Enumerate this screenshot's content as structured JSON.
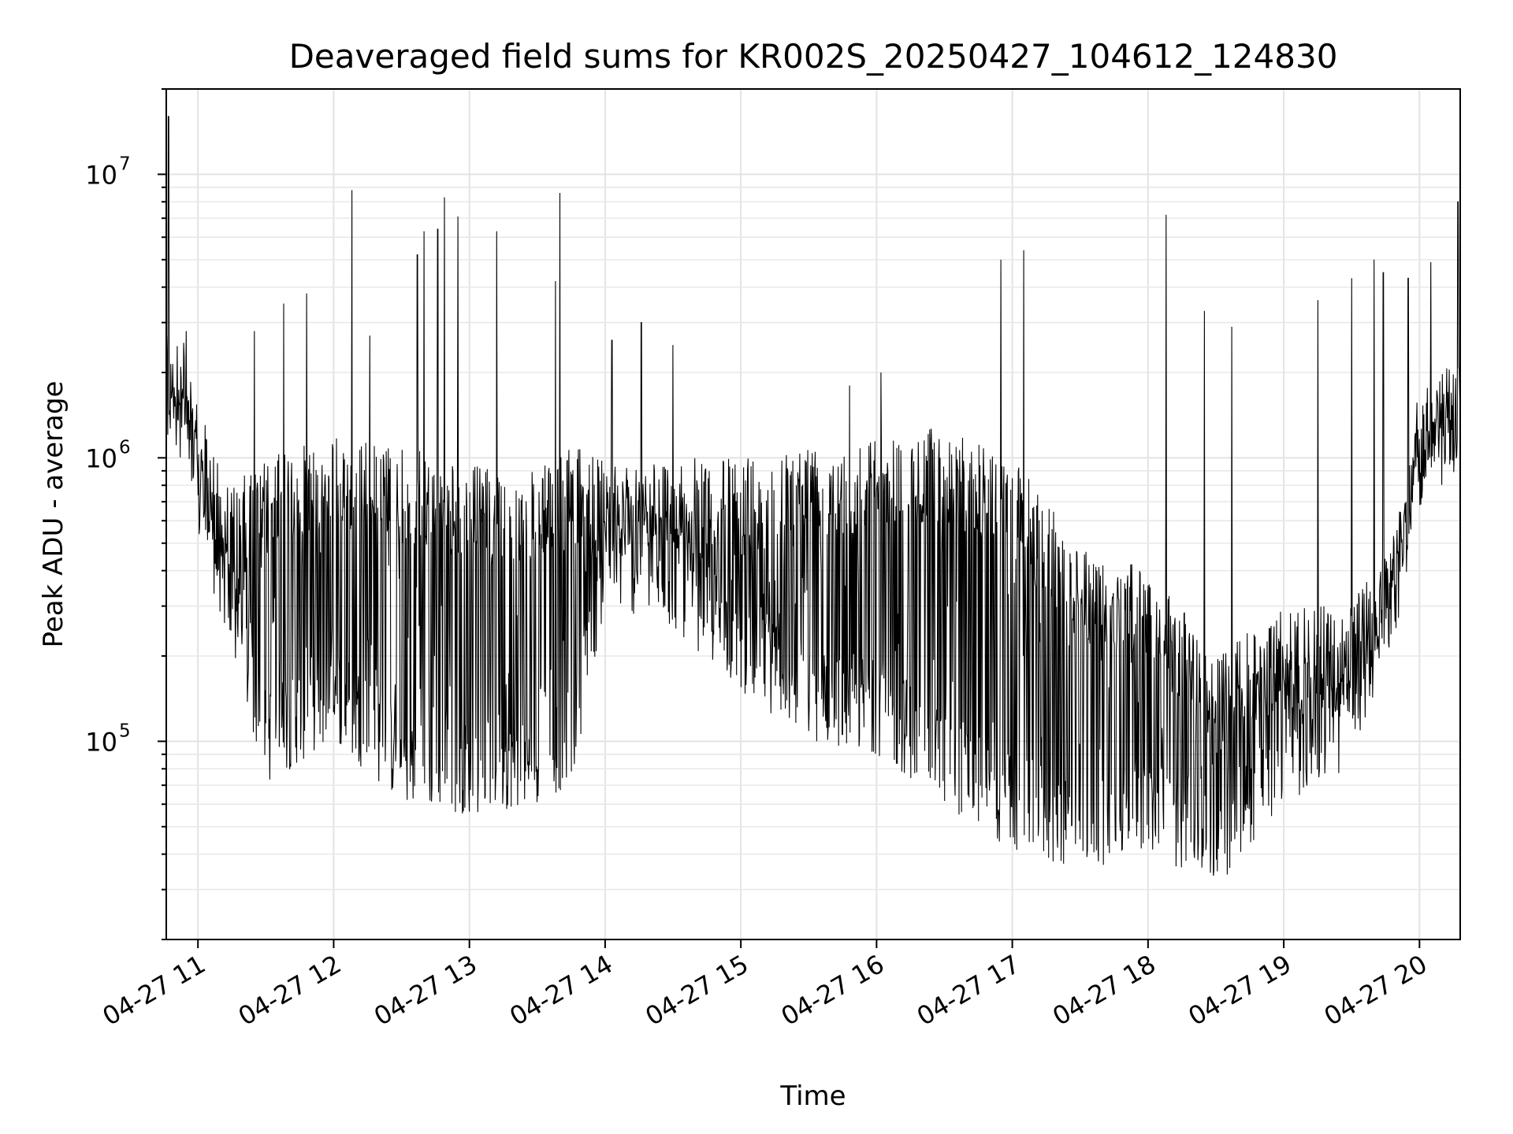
{
  "chart_data": {
    "type": "line",
    "title": "Deaveraged field sums for KR002S_20250427_104612_124830",
    "xlabel": "Time",
    "ylabel": "Peak ADU - average",
    "yscale": "log",
    "ylim": [
      20000,
      20000000
    ],
    "xlim": [
      "2025-04-27 10:46",
      "2025-04-27 20:18"
    ],
    "x_ticks": [
      "04-27 11",
      "04-27 12",
      "04-27 13",
      "04-27 14",
      "04-27 15",
      "04-27 16",
      "04-27 17",
      "04-27 18",
      "04-27 19",
      "04-27 20"
    ],
    "y_ticks": [
      {
        "value": 100000,
        "base": "10",
        "exp": "5"
      },
      {
        "value": 1000000,
        "base": "10",
        "exp": "6"
      },
      {
        "value": 10000000,
        "base": "10",
        "exp": "7"
      }
    ],
    "grid": true,
    "line_color": "#000000",
    "envelope": [
      {
        "x": "2025-04-27 10:46",
        "low": 1200000,
        "high": 2500000
      },
      {
        "x": "2025-04-27 10:55",
        "low": 1300000,
        "high": 2000000
      },
      {
        "x": "2025-04-27 11:00",
        "low": 500000,
        "high": 1500000
      },
      {
        "x": "2025-04-27 11:15",
        "low": 200000,
        "high": 800000
      },
      {
        "x": "2025-04-27 11:30",
        "low": 70000,
        "high": 1000000
      },
      {
        "x": "2025-04-27 12:00",
        "low": 100000,
        "high": 1200000
      },
      {
        "x": "2025-04-27 12:30",
        "low": 60000,
        "high": 1100000
      },
      {
        "x": "2025-04-27 13:00",
        "low": 55000,
        "high": 950000
      },
      {
        "x": "2025-04-27 13:30",
        "low": 60000,
        "high": 900000
      },
      {
        "x": "2025-04-27 13:45",
        "low": 70000,
        "high": 1100000
      },
      {
        "x": "2025-04-27 14:00",
        "low": 300000,
        "high": 1000000
      },
      {
        "x": "2025-04-27 14:30",
        "low": 250000,
        "high": 1000000
      },
      {
        "x": "2025-04-27 15:00",
        "low": 150000,
        "high": 1000000
      },
      {
        "x": "2025-04-27 15:30",
        "low": 100000,
        "high": 1150000
      },
      {
        "x": "2025-04-27 16:00",
        "low": 90000,
        "high": 1200000
      },
      {
        "x": "2025-04-27 16:30",
        "low": 60000,
        "high": 1300000
      },
      {
        "x": "2025-04-27 17:00",
        "low": 40000,
        "high": 1000000
      },
      {
        "x": "2025-04-27 17:30",
        "low": 35000,
        "high": 500000
      },
      {
        "x": "2025-04-27 18:00",
        "low": 40000,
        "high": 400000
      },
      {
        "x": "2025-04-27 18:15",
        "low": 35000,
        "high": 300000
      },
      {
        "x": "2025-04-27 18:30",
        "low": 30000,
        "high": 200000
      },
      {
        "x": "2025-04-27 19:00",
        "low": 60000,
        "high": 300000
      },
      {
        "x": "2025-04-27 19:30",
        "low": 80000,
        "high": 300000
      },
      {
        "x": "2025-04-27 19:50",
        "low": 250000,
        "high": 600000
      },
      {
        "x": "2025-04-27 20:00",
        "low": 800000,
        "high": 1500000
      },
      {
        "x": "2025-04-27 20:18",
        "low": 1000000,
        "high": 2000000
      }
    ],
    "spikes": [
      {
        "x": "2025-04-27 10:47",
        "value": 16000000
      },
      {
        "x": "2025-04-27 11:25",
        "value": 2800000
      },
      {
        "x": "2025-04-27 11:38",
        "value": 3500000
      },
      {
        "x": "2025-04-27 11:48",
        "value": 3800000
      },
      {
        "x": "2025-04-27 12:08",
        "value": 8800000
      },
      {
        "x": "2025-04-27 12:16",
        "value": 2700000
      },
      {
        "x": "2025-04-27 12:37",
        "value": 5200000
      },
      {
        "x": "2025-04-27 12:40",
        "value": 6300000
      },
      {
        "x": "2025-04-27 12:46",
        "value": 6400000
      },
      {
        "x": "2025-04-27 12:49",
        "value": 8300000
      },
      {
        "x": "2025-04-27 12:55",
        "value": 7100000
      },
      {
        "x": "2025-04-27 13:12",
        "value": 6300000
      },
      {
        "x": "2025-04-27 13:38",
        "value": 4200000
      },
      {
        "x": "2025-04-27 13:40",
        "value": 8600000
      },
      {
        "x": "2025-04-27 14:03",
        "value": 2600000
      },
      {
        "x": "2025-04-27 14:16",
        "value": 3000000
      },
      {
        "x": "2025-04-27 14:30",
        "value": 2500000
      },
      {
        "x": "2025-04-27 15:48",
        "value": 1800000
      },
      {
        "x": "2025-04-27 16:02",
        "value": 2000000
      },
      {
        "x": "2025-04-27 16:55",
        "value": 5000000
      },
      {
        "x": "2025-04-27 17:05",
        "value": 5400000
      },
      {
        "x": "2025-04-27 18:08",
        "value": 7200000
      },
      {
        "x": "2025-04-27 18:25",
        "value": 3300000
      },
      {
        "x": "2025-04-27 18:37",
        "value": 2900000
      },
      {
        "x": "2025-04-27 19:15",
        "value": 3600000
      },
      {
        "x": "2025-04-27 19:30",
        "value": 4300000
      },
      {
        "x": "2025-04-27 19:40",
        "value": 5000000
      },
      {
        "x": "2025-04-27 19:44",
        "value": 4500000
      },
      {
        "x": "2025-04-27 19:55",
        "value": 4300000
      },
      {
        "x": "2025-04-27 20:05",
        "value": 4900000
      },
      {
        "x": "2025-04-27 20:17",
        "value": 8000000
      }
    ]
  }
}
